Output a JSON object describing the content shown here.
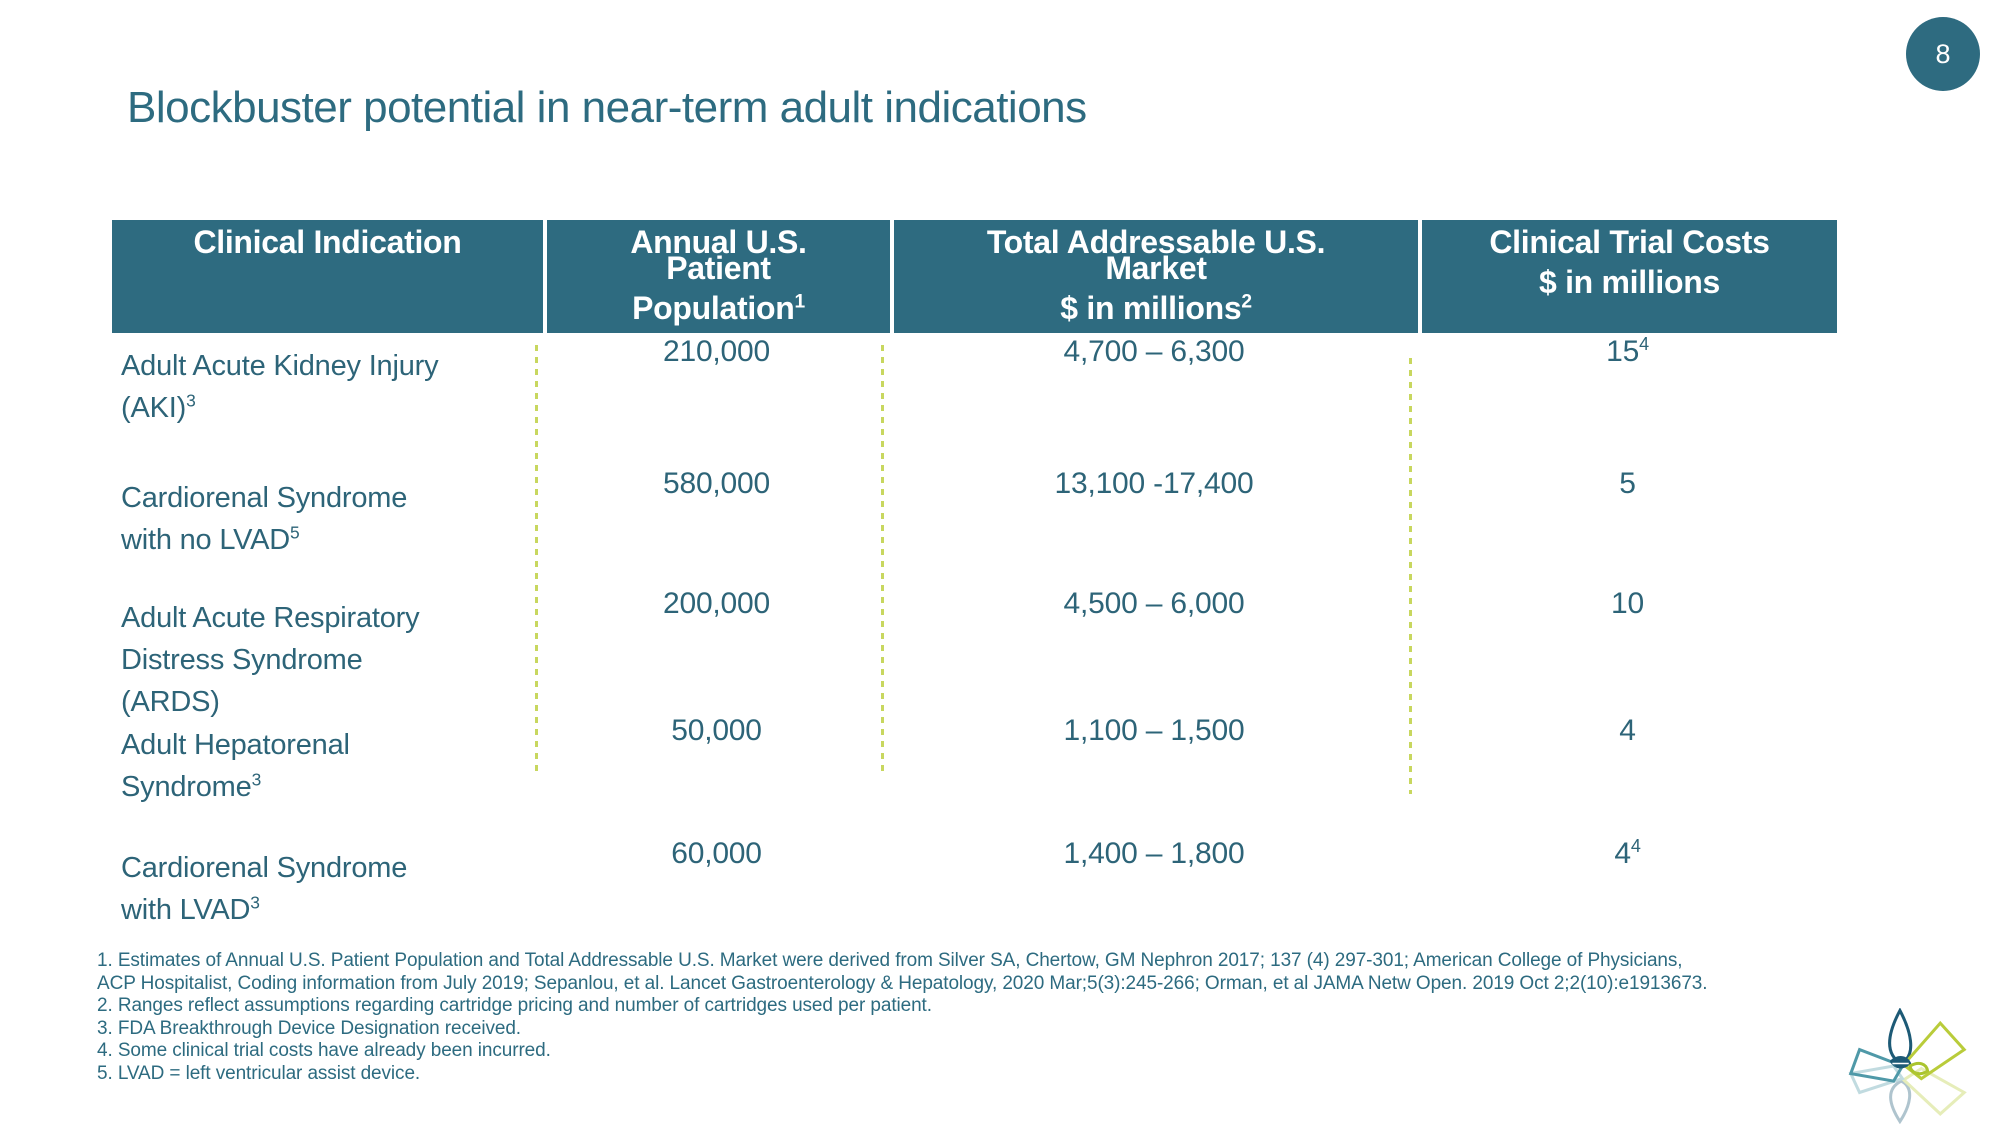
{
  "slide": {
    "title": "Blockbuster potential in near-term adult indications",
    "page_number": "8"
  },
  "table": {
    "headers": [
      {
        "id": "clinical-indication",
        "label": "Clinical Indication"
      },
      {
        "id": "annual-us-patient-population",
        "label": "Annual U.S.\nPatient\nPopulation^1"
      },
      {
        "id": "total-addressable-us-market",
        "label": "Total Addressable U.S.\nMarket\n$ in millions^2"
      },
      {
        "id": "clinical-trial-costs",
        "label": "Clinical Trial Costs\n$ in millions"
      }
    ],
    "rows": [
      {
        "indication": "Adult Acute Kidney Injury\n(AKI)^3",
        "population": "210,000",
        "market": "4,700 – 6,300",
        "trial_cost": "15^4"
      },
      {
        "indication": "Cardiorenal Syndrome\nwith no LVAD^5",
        "population": "580,000",
        "market": "13,100 -17,400",
        "trial_cost": "5"
      },
      {
        "indication": "Adult Acute Respiratory\nDistress Syndrome\n(ARDS)",
        "population": "200,000",
        "market": "4,500 – 6,000",
        "trial_cost": "10"
      },
      {
        "indication": "Adult Hepatorenal\nSyndrome^3",
        "population": "50,000",
        "market": "1,100 – 1,500",
        "trial_cost": "4"
      },
      {
        "indication": "Cardiorenal Syndrome\nwith LVAD^3",
        "population": "60,000",
        "market": "1,400 – 1,800",
        "trial_cost": "4^4"
      }
    ]
  },
  "footnotes": {
    "lines": [
      "1. Estimates of Annual U.S. Patient Population and Total Addressable U.S. Market were derived from Silver SA, Chertow, GM Nephron 2017; 137 (4) 297-301;   American College of Physicians,",
      "ACP Hospitalist,   Coding information from July 2019; Sepanlou, et al. Lancet Gastroenterology & Hepatology, 2020 Mar;5(3):245-266; Orman, et al JAMA Netw Open. 2019 Oct 2;2(10):e1913673.",
      "2. Ranges reflect assumptions regarding cartridge pricing and number of cartridges used per patient.",
      "3. FDA Breakthrough Device Designation received.",
      "4. Some clinical trial costs have already been incurred.",
      "5. LVAD = left ventricular assist device."
    ]
  },
  "colors": {
    "header_background": "#2e6b80",
    "header_text": "#ffffff",
    "body_text": "#2d6478",
    "title_text": "#2d6b80",
    "dotted_divider": "#c8d75f",
    "logo_dark_teal": "#1d5a76",
    "logo_yellow_green": "#b9cc3a",
    "logo_light_teal": "#4f99a8"
  }
}
